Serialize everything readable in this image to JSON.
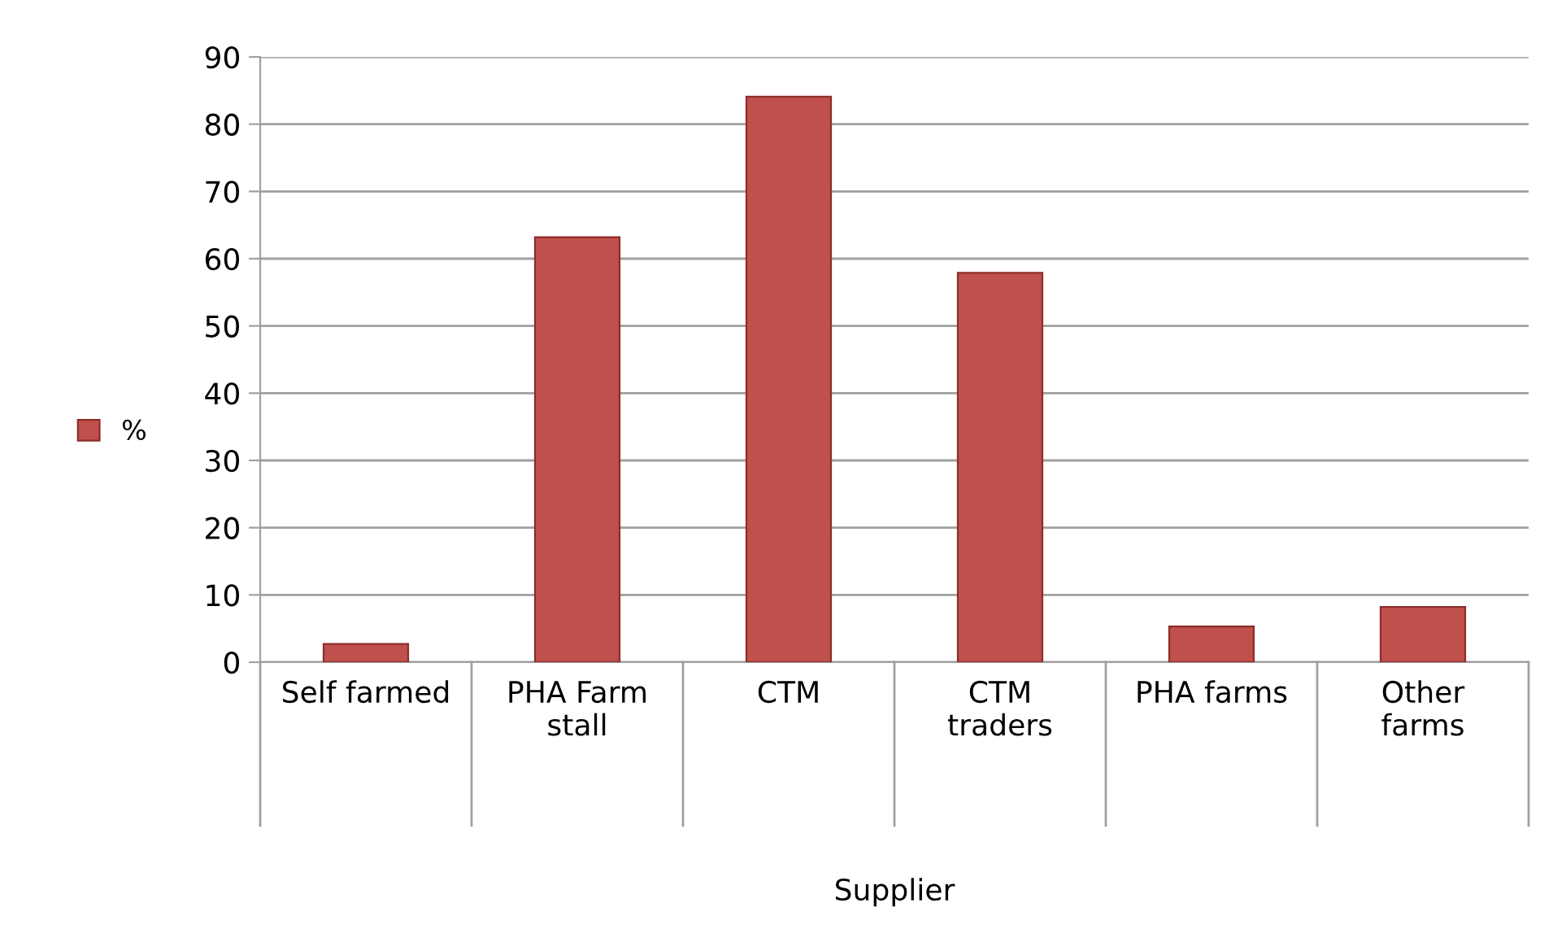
{
  "chart_data": {
    "type": "bar",
    "xlabel": "Supplier",
    "categories": [
      "Self farmed",
      "PHA Farm\nstall",
      "CTM",
      "CTM\ntraders",
      "PHA farms",
      "Other\nfarms"
    ],
    "series": [
      {
        "name": "%",
        "color": "#c0504d",
        "values": [
          2.7,
          63.2,
          84.1,
          57.9,
          5.3,
          8.2
        ]
      }
    ],
    "ylim": [
      0,
      90
    ],
    "yticks": [
      0,
      10,
      20,
      30,
      40,
      50,
      60,
      70,
      80,
      90
    ],
    "grid": "y",
    "legend": "left"
  }
}
